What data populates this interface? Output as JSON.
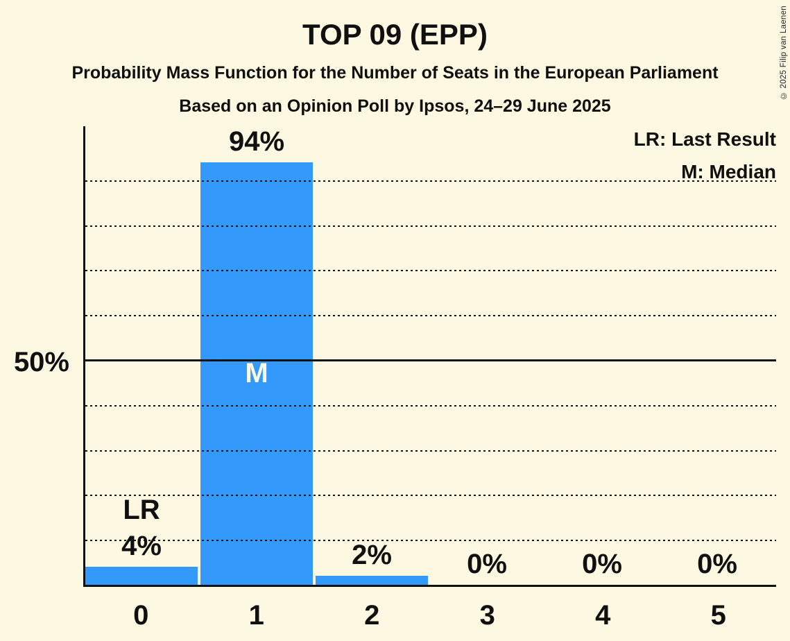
{
  "header": {
    "title": "TOP 09 (EPP)",
    "subtitle": "Probability Mass Function for the Number of Seats in the European Parliament",
    "poll_details": "Based on an Opinion Poll by Ipsos, 24–29 June 2025"
  },
  "legend": {
    "lr_label": "LR: Last Result",
    "m_label": "M: Median"
  },
  "copyright": "© 2025 Filip van Laenen",
  "colors": {
    "background": "#fdf8e2",
    "bar": "#3399fa",
    "text": "#101010",
    "grid": "#111111",
    "bar_inner_label": "#fdf8e2"
  },
  "chart_data": {
    "type": "bar",
    "title": "TOP 09 (EPP)",
    "xlabel": "",
    "ylabel": "",
    "categories": [
      "0",
      "1",
      "2",
      "3",
      "4",
      "5"
    ],
    "values": [
      4,
      94,
      2,
      0,
      0,
      0
    ],
    "value_labels": [
      "4%",
      "94%",
      "2%",
      "0%",
      "0%",
      "0%"
    ],
    "annotations": [
      {
        "category": "0",
        "text": "LR",
        "placement": "above-value-label",
        "meaning": "Last Result"
      },
      {
        "category": "1",
        "text": "M",
        "placement": "inside-bar-center",
        "meaning": "Median"
      }
    ],
    "ylim": [
      0,
      100
    ],
    "yticks": [
      {
        "value": 50,
        "label": "50%"
      }
    ],
    "gridlines_dotted": [
      10,
      20,
      30,
      40,
      60,
      70,
      80,
      90
    ],
    "gridline_solid": 50,
    "grid": true,
    "legend_position": "top-right"
  }
}
